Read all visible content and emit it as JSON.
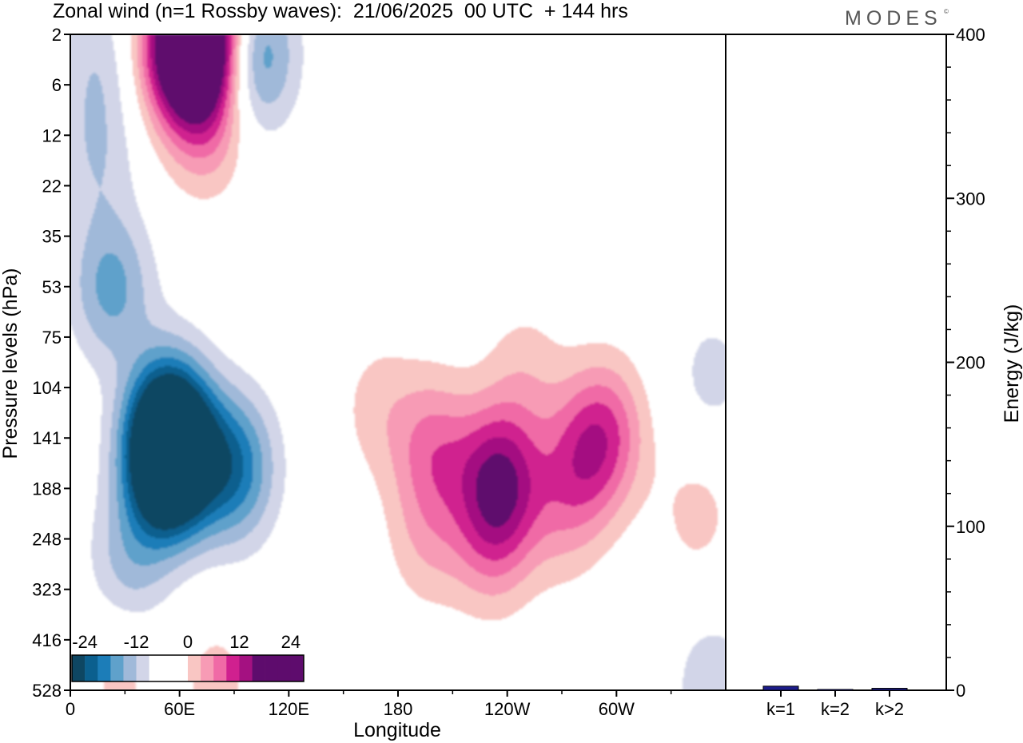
{
  "header": {
    "title": "Zonal wind (n=1 Rossby waves):  21/06/2025  00 UTC  + 144 hrs",
    "brand": "MODES",
    "brand_mark": "©"
  },
  "colors": {
    "contour_levels": [
      -24,
      -21,
      -18,
      -15,
      -12,
      -9,
      -6,
      -3,
      3,
      6,
      9,
      12,
      15,
      18,
      21,
      24
    ],
    "neg_fill": [
      "#0e4662",
      "#0b5f8e",
      "#1c7db8",
      "#5fa1cb",
      "#a0b9d9",
      "#d2d5e8"
    ],
    "pos_fill": [
      "#f9c6c3",
      "#f79bb5",
      "#f06aa6",
      "#d0208f",
      "#a41181",
      "#5e0c6d"
    ],
    "bar_fill": "#1c1c8a",
    "axis": "#000000"
  },
  "chart_data": [
    {
      "type": "heatmap",
      "title": "Zonal wind (n=1 Rossby waves):  21/06/2025  00 UTC  + 144 hrs",
      "xlabel": "Longitude",
      "ylabel": "Pressure levels (hPa)",
      "x_ticks": [
        "0",
        "60E",
        "120E",
        "180",
        "120W",
        "60W"
      ],
      "x_tick_degrees": [
        0,
        60,
        120,
        180,
        240,
        300
      ],
      "xlim": [
        0,
        360
      ],
      "y_ticks": [
        "2",
        "6",
        "12",
        "22",
        "35",
        "53",
        "75",
        "104",
        "141",
        "188",
        "248",
        "323",
        "416",
        "528"
      ],
      "colorbar": {
        "labels": [
          "-24",
          "-12",
          "0",
          "12",
          "24"
        ],
        "label_values": [
          -24,
          -12,
          0,
          12,
          24
        ],
        "range": [
          -27,
          27
        ],
        "step": 3
      },
      "features": [
        {
          "lon": 22,
          "lev": 5.0,
          "value": -10
        },
        {
          "lon": 14,
          "lev": 2.4,
          "value": -5
        },
        {
          "lon": 59,
          "lev": 0.3,
          "value": 18
        },
        {
          "lon": 75,
          "lev": 1.7,
          "value": 8
        },
        {
          "lon": 74,
          "lev": 0.0,
          "value": 26
        },
        {
          "lon": 100,
          "lev": 0.4,
          "value": -14
        },
        {
          "lon": 15,
          "lev": 0.5,
          "value": -5
        },
        {
          "lon": 53,
          "lev": 8.2,
          "value": -22
        },
        {
          "lon": 55,
          "lev": 8.5,
          "value": -18
        },
        {
          "lon": 90,
          "lev": 8.6,
          "value": -14
        },
        {
          "lon": 32,
          "lev": 10.5,
          "value": -7
        },
        {
          "lon": 55,
          "lev": 7.4,
          "value": -6
        },
        {
          "lon": 169,
          "lev": 7.4,
          "value": 4
        },
        {
          "lon": 200,
          "lev": 8.2,
          "value": 9
        },
        {
          "lon": 196,
          "lev": 10.0,
          "value": 5
        },
        {
          "lon": 236,
          "lev": 8.8,
          "value": 16
        },
        {
          "lon": 232,
          "lev": 10.1,
          "value": 7
        },
        {
          "lon": 294,
          "lev": 7.9,
          "value": 11
        },
        {
          "lon": 279,
          "lev": 8.6,
          "value": 7
        },
        {
          "lon": 270,
          "lev": 9.6,
          "value": 4
        },
        {
          "lon": 345,
          "lev": 9.5,
          "value": 4
        },
        {
          "lon": 250,
          "lev": 6.7,
          "value": 4
        },
        {
          "lon": 353,
          "lev": 6.8,
          "value": -4
        },
        {
          "lon": 353,
          "lev": 12.9,
          "value": -5
        },
        {
          "lon": 27,
          "lev": 12.7,
          "value": 4
        },
        {
          "lon": 80,
          "lev": 12.9,
          "value": 4
        }
      ]
    },
    {
      "type": "bar",
      "ylabel": "Energy (J/kg)",
      "categories": [
        "k=1",
        "k=2",
        "k>2"
      ],
      "values": [
        2.5,
        0.5,
        1.2
      ],
      "ylim": [
        0,
        400
      ],
      "y_ticks": [
        "0",
        "100",
        "200",
        "300",
        "400"
      ],
      "y_tick_values": [
        0,
        100,
        200,
        300,
        400
      ]
    }
  ]
}
